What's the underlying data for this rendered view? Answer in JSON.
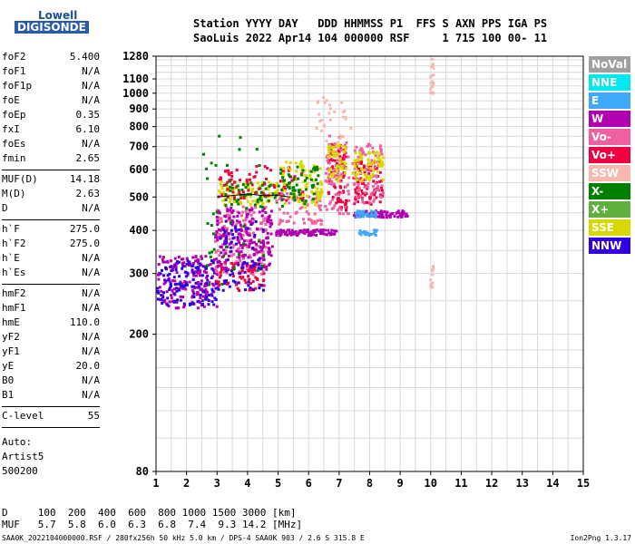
{
  "logo": {
    "line1": "Lowell",
    "line2": "DIGISONDE"
  },
  "header": {
    "labels_line": "Station YYYY DAY   DDD HHMMSS P1  FFS S AXN PPS IGA PS",
    "values_line": "SaoLuis 2022 Apr14 104 000000 RSF     1 715 100 00- 11"
  },
  "params": {
    "group1": [
      {
        "k": "foF2",
        "v": "5.400"
      },
      {
        "k": "foF1",
        "v": "N/A"
      },
      {
        "k": "foF1p",
        "v": "N/A"
      },
      {
        "k": "foE",
        "v": "N/A"
      },
      {
        "k": "foEp",
        "v": "0.35"
      },
      {
        "k": "fxI",
        "v": "6.10"
      },
      {
        "k": "foEs",
        "v": "N/A"
      },
      {
        "k": "fmin",
        "v": "2.65"
      }
    ],
    "group2": [
      {
        "k": "MUF(D)",
        "v": "14.18"
      },
      {
        "k": "M(D)",
        "v": "2.63"
      },
      {
        "k": "D",
        "v": "N/A"
      }
    ],
    "group3": [
      {
        "k": "h`F",
        "v": "275.0"
      },
      {
        "k": "h`F2",
        "v": "275.0"
      },
      {
        "k": "h`E",
        "v": "N/A"
      },
      {
        "k": "h`Es",
        "v": "N/A"
      }
    ],
    "group4": [
      {
        "k": "hmF2",
        "v": "N/A"
      },
      {
        "k": "hmF1",
        "v": "N/A"
      },
      {
        "k": "hmE",
        "v": "110.0"
      },
      {
        "k": "yF2",
        "v": "N/A"
      },
      {
        "k": "yF1",
        "v": "N/A"
      },
      {
        "k": "yE",
        "v": "20.0"
      },
      {
        "k": "B0",
        "v": "N/A"
      },
      {
        "k": "B1",
        "v": "N/A"
      }
    ],
    "group5": [
      {
        "k": "C-level",
        "v": "55"
      }
    ]
  },
  "auto": {
    "line1": "Auto:",
    "line2": "Artist5",
    "line3": "500200"
  },
  "legend": [
    {
      "label": "NoVal",
      "color": "#a0a0a0"
    },
    {
      "label": "NNE",
      "color": "#00e8f0"
    },
    {
      "label": "E",
      "color": "#40a8f8"
    },
    {
      "label": "W",
      "color": "#b000b0"
    },
    {
      "label": "Vo-",
      "color": "#f060a0"
    },
    {
      "label": "Vo+",
      "color": "#f00040"
    },
    {
      "label": "SSW",
      "color": "#f8b8b0"
    },
    {
      "label": "X-",
      "color": "#008000"
    },
    {
      "label": "X+",
      "color": "#60b040"
    },
    {
      "label": "SSE",
      "color": "#d8d800"
    },
    {
      "label": "NNW",
      "color": "#3000e0"
    }
  ],
  "muf_table": {
    "d_line": "D     100  200  400  600  800 1000 1500 3000 [km]",
    "muf_line": "MUF   5.7  5.8  6.0  6.3  6.8  7.4  9.3 14.2 [MHz]"
  },
  "footer": "SAA0K_2022104000000.RSF / 280fx256h 50 kHz 5.0 km / DPS-4 SAA0K 903 / 2.6 S 315.8 E",
  "version": "Ion2Png 1.3.17",
  "chart_data": {
    "type": "scatter",
    "title": "",
    "xlabel": "",
    "ylabel": "",
    "xlim": [
      1,
      15
    ],
    "ylim": [
      80,
      1280
    ],
    "y_scale": "log",
    "grid": true,
    "x_ticks": [
      1,
      2,
      3,
      4,
      5,
      6,
      7,
      8,
      9,
      10,
      11,
      12,
      13,
      14,
      15
    ],
    "y_ticks": [
      80,
      200,
      300,
      400,
      500,
      600,
      700,
      800,
      900,
      1000,
      1100,
      1280
    ],
    "clusters": [
      {
        "color": "#b000b0",
        "x": [
          1.0,
          3.0
        ],
        "y": [
          240,
          340
        ],
        "n": 180
      },
      {
        "color": "#3000e0",
        "x": [
          1.0,
          3.0
        ],
        "y": [
          245,
          330
        ],
        "n": 120
      },
      {
        "color": "#f060a0",
        "x": [
          2.9,
          4.6
        ],
        "y": [
          300,
          480
        ],
        "n": 170
      },
      {
        "color": "#b000b0",
        "x": [
          2.9,
          4.8
        ],
        "y": [
          310,
          470
        ],
        "n": 200
      },
      {
        "color": "#f00040",
        "x": [
          2.9,
          4.5
        ],
        "y": [
          270,
          330
        ],
        "n": 60
      },
      {
        "color": "#3000e0",
        "x": [
          3.0,
          4.5
        ],
        "y": [
          270,
          430
        ],
        "n": 70
      },
      {
        "color": "#d8d800",
        "x": [
          3.0,
          5.0
        ],
        "y": [
          480,
          560
        ],
        "n": 90
      },
      {
        "color": "#008000",
        "x": [
          3.2,
          5.5
        ],
        "y": [
          470,
          560
        ],
        "n": 60
      },
      {
        "color": "#f00040",
        "x": [
          3.0,
          5.8
        ],
        "y": [
          490,
          620
        ],
        "n": 80
      },
      {
        "color": "#b000b0",
        "x": [
          4.9,
          6.9
        ],
        "y": [
          390,
          405
        ],
        "n": 90
      },
      {
        "color": "#f060a0",
        "x": [
          4.9,
          6.4
        ],
        "y": [
          420,
          520
        ],
        "n": 60
      },
      {
        "color": "#d8d800",
        "x": [
          5.0,
          6.4
        ],
        "y": [
          470,
          640
        ],
        "n": 80
      },
      {
        "color": "#008000",
        "x": [
          5.0,
          6.3
        ],
        "y": [
          480,
          620
        ],
        "n": 50
      },
      {
        "color": "#f00040",
        "x": [
          6.6,
          7.2
        ],
        "y": [
          460,
          720
        ],
        "n": 90
      },
      {
        "color": "#f060a0",
        "x": [
          6.5,
          7.3
        ],
        "y": [
          450,
          760
        ],
        "n": 80
      },
      {
        "color": "#d8d800",
        "x": [
          6.6,
          7.2
        ],
        "y": [
          560,
          720
        ],
        "n": 50
      },
      {
        "color": "#f00040",
        "x": [
          7.4,
          8.4
        ],
        "y": [
          480,
          640
        ],
        "n": 90
      },
      {
        "color": "#f060a0",
        "x": [
          7.4,
          8.4
        ],
        "y": [
          480,
          720
        ],
        "n": 80
      },
      {
        "color": "#d8d800",
        "x": [
          7.4,
          8.4
        ],
        "y": [
          560,
          680
        ],
        "n": 60
      },
      {
        "color": "#b000b0",
        "x": [
          7.4,
          9.2
        ],
        "y": [
          440,
          460
        ],
        "n": 70
      },
      {
        "color": "#40a8f8",
        "x": [
          7.5,
          8.2
        ],
        "y": [
          440,
          460
        ],
        "n": 30
      },
      {
        "color": "#40a8f8",
        "x": [
          7.6,
          8.2
        ],
        "y": [
          390,
          405
        ],
        "n": 20
      },
      {
        "color": "#f8b8b0",
        "x": [
          6.2,
          7.4
        ],
        "y": [
          700,
          1000
        ],
        "n": 30
      },
      {
        "color": "#008000",
        "x": [
          2.5,
          4.5
        ],
        "y": [
          280,
          760
        ],
        "n": 40
      },
      {
        "color": "#f8b8b0",
        "x": [
          9.95,
          10.05
        ],
        "y": [
          1000,
          1280
        ],
        "n": 20
      },
      {
        "color": "#f8b8b0",
        "x": [
          9.95,
          10.05
        ],
        "y": [
          270,
          320
        ],
        "n": 12
      }
    ],
    "traces": [
      {
        "color": "#000000",
        "x": [
          3.0,
          3.5,
          4.0,
          4.5,
          5.0,
          5.4
        ],
        "y": [
          500,
          505,
          510,
          505,
          505,
          500
        ]
      }
    ]
  }
}
